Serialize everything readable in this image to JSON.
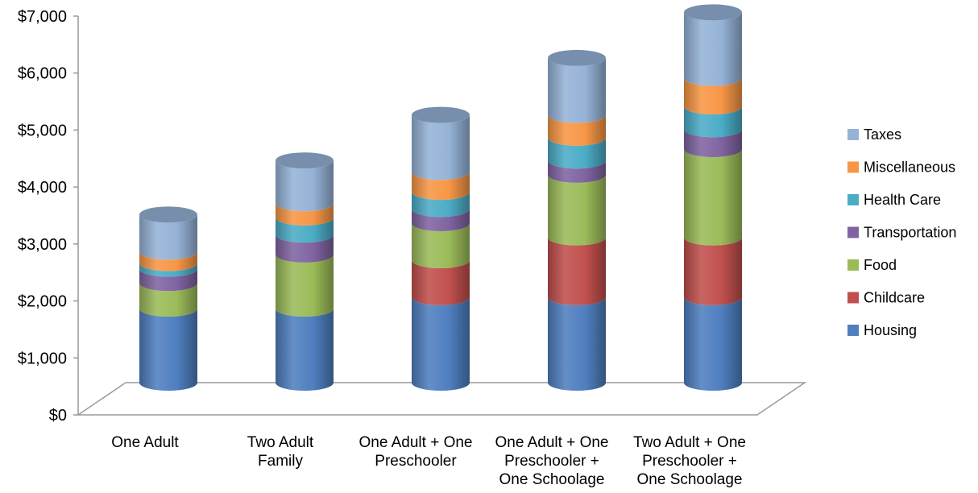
{
  "chart_data": {
    "type": "bar",
    "stacked": true,
    "bar_shape": "3d-cylinder",
    "categories": [
      [
        "One Adult"
      ],
      [
        "Two Adult",
        "Family"
      ],
      [
        "One Adult + One",
        "Preschooler"
      ],
      [
        "One Adult + One",
        "Preschooler +",
        "One Schoolage"
      ],
      [
        "Two Adult + One",
        "Preschooler +",
        "One Schoolage"
      ]
    ],
    "series": [
      {
        "name": "Housing",
        "color": "#4F7FBF",
        "values": [
          1300,
          1300,
          1500,
          1500,
          1500
        ]
      },
      {
        "name": "Childcare",
        "color": "#C0504D",
        "values": [
          0,
          0,
          650,
          1050,
          1050
        ]
      },
      {
        "name": "Food",
        "color": "#9BBB59",
        "values": [
          450,
          950,
          650,
          1100,
          1550
        ]
      },
      {
        "name": "Transportation",
        "color": "#8064A2",
        "values": [
          250,
          350,
          250,
          250,
          350
        ]
      },
      {
        "name": "Health Care",
        "color": "#4BACC6",
        "values": [
          100,
          300,
          300,
          400,
          400
        ]
      },
      {
        "name": "Miscellaneous",
        "color": "#F79646",
        "values": [
          200,
          250,
          350,
          400,
          500
        ]
      },
      {
        "name": "Taxes",
        "color": "#95B3D7",
        "values": [
          650,
          750,
          1000,
          1000,
          1150
        ]
      }
    ],
    "legend_order": [
      "Taxes",
      "Miscellaneous",
      "Health Care",
      "Transportation",
      "Food",
      "Childcare",
      "Housing"
    ],
    "y_ticks": [
      "$0",
      "$1,000",
      "$2,000",
      "$3,000",
      "$4,000",
      "$5,000",
      "$6,000",
      "$7,000"
    ],
    "ylim": [
      0,
      7000
    ],
    "grid": false,
    "legend_position": "right"
  }
}
